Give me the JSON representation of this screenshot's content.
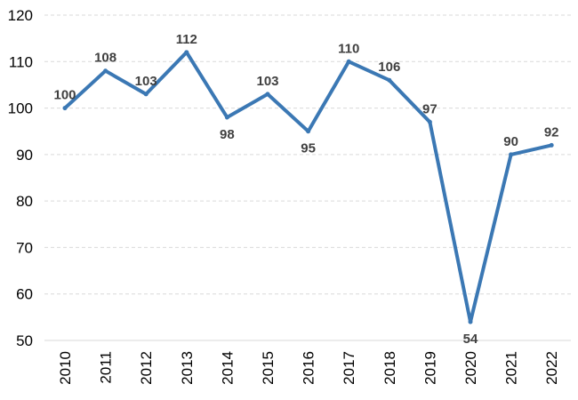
{
  "chart_data": {
    "type": "line",
    "title": "",
    "xlabel": "",
    "ylabel": "",
    "categories": [
      "2010",
      "2011",
      "2012",
      "2013",
      "2014",
      "2015",
      "2016",
      "2017",
      "2018",
      "2019",
      "2020",
      "2021",
      "2022"
    ],
    "series": [
      {
        "values": [
          100,
          108,
          103,
          112,
          98,
          103,
          95,
          110,
          106,
          97,
          54,
          90,
          92
        ],
        "data_labels": [
          "100",
          "108",
          "103",
          "112",
          "98",
          "103",
          "95",
          "110",
          "106",
          "97",
          "54",
          "90",
          "92"
        ],
        "label_placement": [
          "above",
          "above",
          "above",
          "above",
          "below",
          "above",
          "below",
          "above",
          "above",
          "above",
          "below",
          "above",
          "above"
        ],
        "color": "#3b78b4"
      }
    ],
    "ylim": [
      50,
      120
    ],
    "yticks": [
      "50",
      "60",
      "70",
      "80",
      "90",
      "100",
      "110",
      "120"
    ],
    "grid": true,
    "legend": "none"
  }
}
